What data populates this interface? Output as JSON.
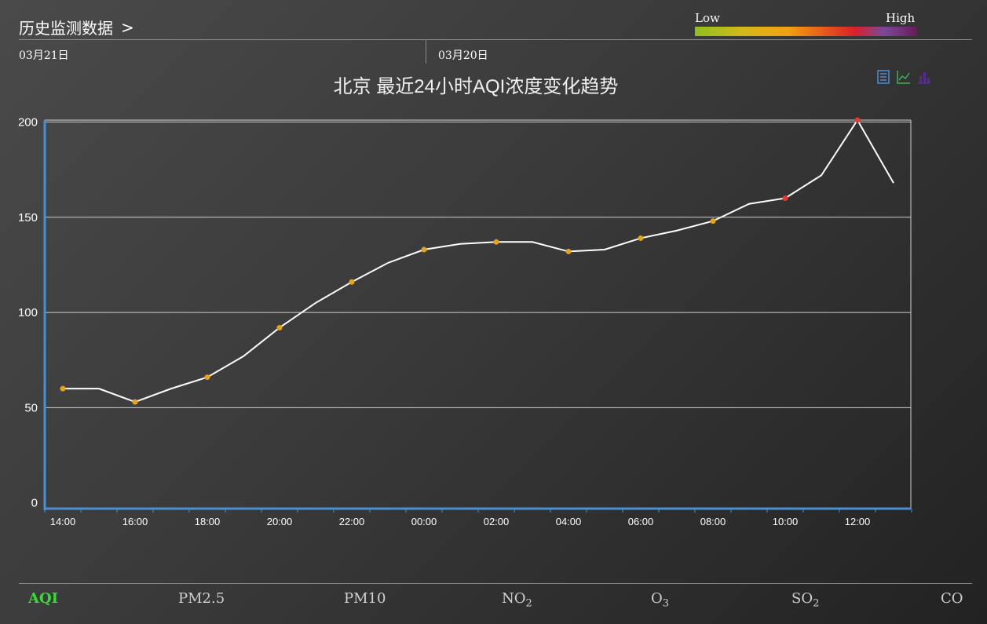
{
  "header": {
    "title": "历史监测数据",
    "chevron": ">"
  },
  "dates": {
    "left": "03月21日",
    "right": "03月20日"
  },
  "legend": {
    "low": "Low",
    "high": "High"
  },
  "colors": {
    "line": "#ffffff",
    "point_low": "#e8a317",
    "point_high": "#e53935",
    "axis": "#4a8fd4",
    "grid": "#cfcfcf",
    "active_tab": "#33dd33"
  },
  "toolbar": {
    "icons": [
      "data-view-icon",
      "line-chart-icon",
      "bar-chart-icon"
    ]
  },
  "chart_data": {
    "type": "line",
    "title": "北京 最近24小时AQI浓度变化趋势",
    "x": [
      "14:00",
      "15:00",
      "16:00",
      "17:00",
      "18:00",
      "19:00",
      "20:00",
      "21:00",
      "22:00",
      "23:00",
      "00:00",
      "01:00",
      "02:00",
      "03:00",
      "04:00",
      "05:00",
      "06:00",
      "07:00",
      "08:00",
      "09:00",
      "10:00",
      "11:00",
      "12:00",
      "13:00"
    ],
    "x_tick_labels": [
      "14:00",
      "16:00",
      "18:00",
      "20:00",
      "22:00",
      "00:00",
      "02:00",
      "04:00",
      "06:00",
      "08:00",
      "10:00",
      "12:00"
    ],
    "series": [
      {
        "values": [
          60,
          60,
          53,
          60,
          66,
          77,
          92,
          105,
          116,
          126,
          133,
          136,
          137,
          137,
          132,
          133,
          139,
          143,
          148,
          157,
          160,
          172,
          201,
          168
        ]
      }
    ],
    "y_ticks": [
      0,
      50,
      100,
      150,
      200
    ],
    "ylim": [
      -3,
      201
    ],
    "grid": true,
    "legend": "top-right"
  },
  "tabs": [
    {
      "label": "AQI",
      "sub": "",
      "active": true
    },
    {
      "label": "PM2.5",
      "sub": ""
    },
    {
      "label": "PM10",
      "sub": ""
    },
    {
      "label": "NO",
      "sub": "2"
    },
    {
      "label": "O",
      "sub": "3"
    },
    {
      "label": "SO",
      "sub": "2"
    },
    {
      "label": "CO",
      "sub": ""
    }
  ]
}
